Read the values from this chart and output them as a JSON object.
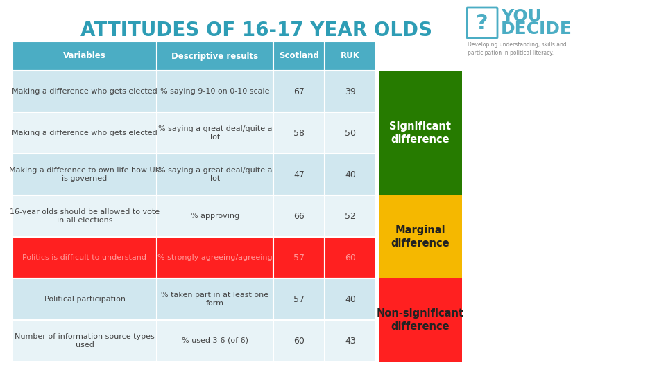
{
  "title": "ATTITUDES OF 16-17 YEAR OLDS",
  "title_color": "#2E9DB5",
  "header_bg": "#4BADC4",
  "header_text_color": "#FFFFFF",
  "header_labels": [
    "Variables",
    "Descriptive results",
    "Scotland",
    "RUK"
  ],
  "rows": [
    {
      "variable": "Making a difference who gets elected",
      "descriptive": "% saying 9-10 on 0-10 scale",
      "scotland": "67",
      "ruk": "39",
      "row_bg": "#D0E7EF",
      "text_color": "#444444",
      "highlight": false
    },
    {
      "variable": "Making a difference who gets elected",
      "descriptive": "% saying a great deal/quite a\nlot",
      "scotland": "58",
      "ruk": "50",
      "row_bg": "#E8F3F7",
      "text_color": "#444444",
      "highlight": false
    },
    {
      "variable": "Making a difference to own life how UK\nis governed",
      "descriptive": "% saying a great deal/quite a\nlot",
      "scotland": "47",
      "ruk": "40",
      "row_bg": "#D0E7EF",
      "text_color": "#444444",
      "highlight": false
    },
    {
      "variable": "16-year olds should be allowed to vote\nin all elections",
      "descriptive": "% approving",
      "scotland": "66",
      "ruk": "52",
      "row_bg": "#E8F3F7",
      "text_color": "#444444",
      "highlight": false
    },
    {
      "variable": "Politics is difficult to understand",
      "descriptive": "% strongly agreeing/agreeing",
      "scotland": "57",
      "ruk": "60",
      "row_bg": "#FF2020",
      "text_color": "#FF9999",
      "highlight": true
    },
    {
      "variable": "Political participation",
      "descriptive": "% taken part in at least one\nform",
      "scotland": "57",
      "ruk": "40",
      "row_bg": "#D0E7EF",
      "text_color": "#444444",
      "highlight": false
    },
    {
      "variable": "Number of information source types\nused",
      "descriptive": "% used 3-6 (of 6)",
      "scotland": "60",
      "ruk": "43",
      "row_bg": "#E8F3F7",
      "text_color": "#444444",
      "highlight": false
    }
  ],
  "sidebar": [
    {
      "label": "Significant\ndifference",
      "color": "#267B00",
      "text_color": "#FFFFFF",
      "rows": [
        0,
        1,
        2
      ]
    },
    {
      "label": "Marginal\ndifference",
      "color": "#F5B800",
      "text_color": "#222222",
      "rows": [
        3,
        4
      ]
    },
    {
      "label": "Non-significant\ndifference",
      "color": "#FF2020",
      "text_color": "#222222",
      "rows": [
        5,
        6
      ]
    }
  ],
  "background_color": "#FFFFFF"
}
